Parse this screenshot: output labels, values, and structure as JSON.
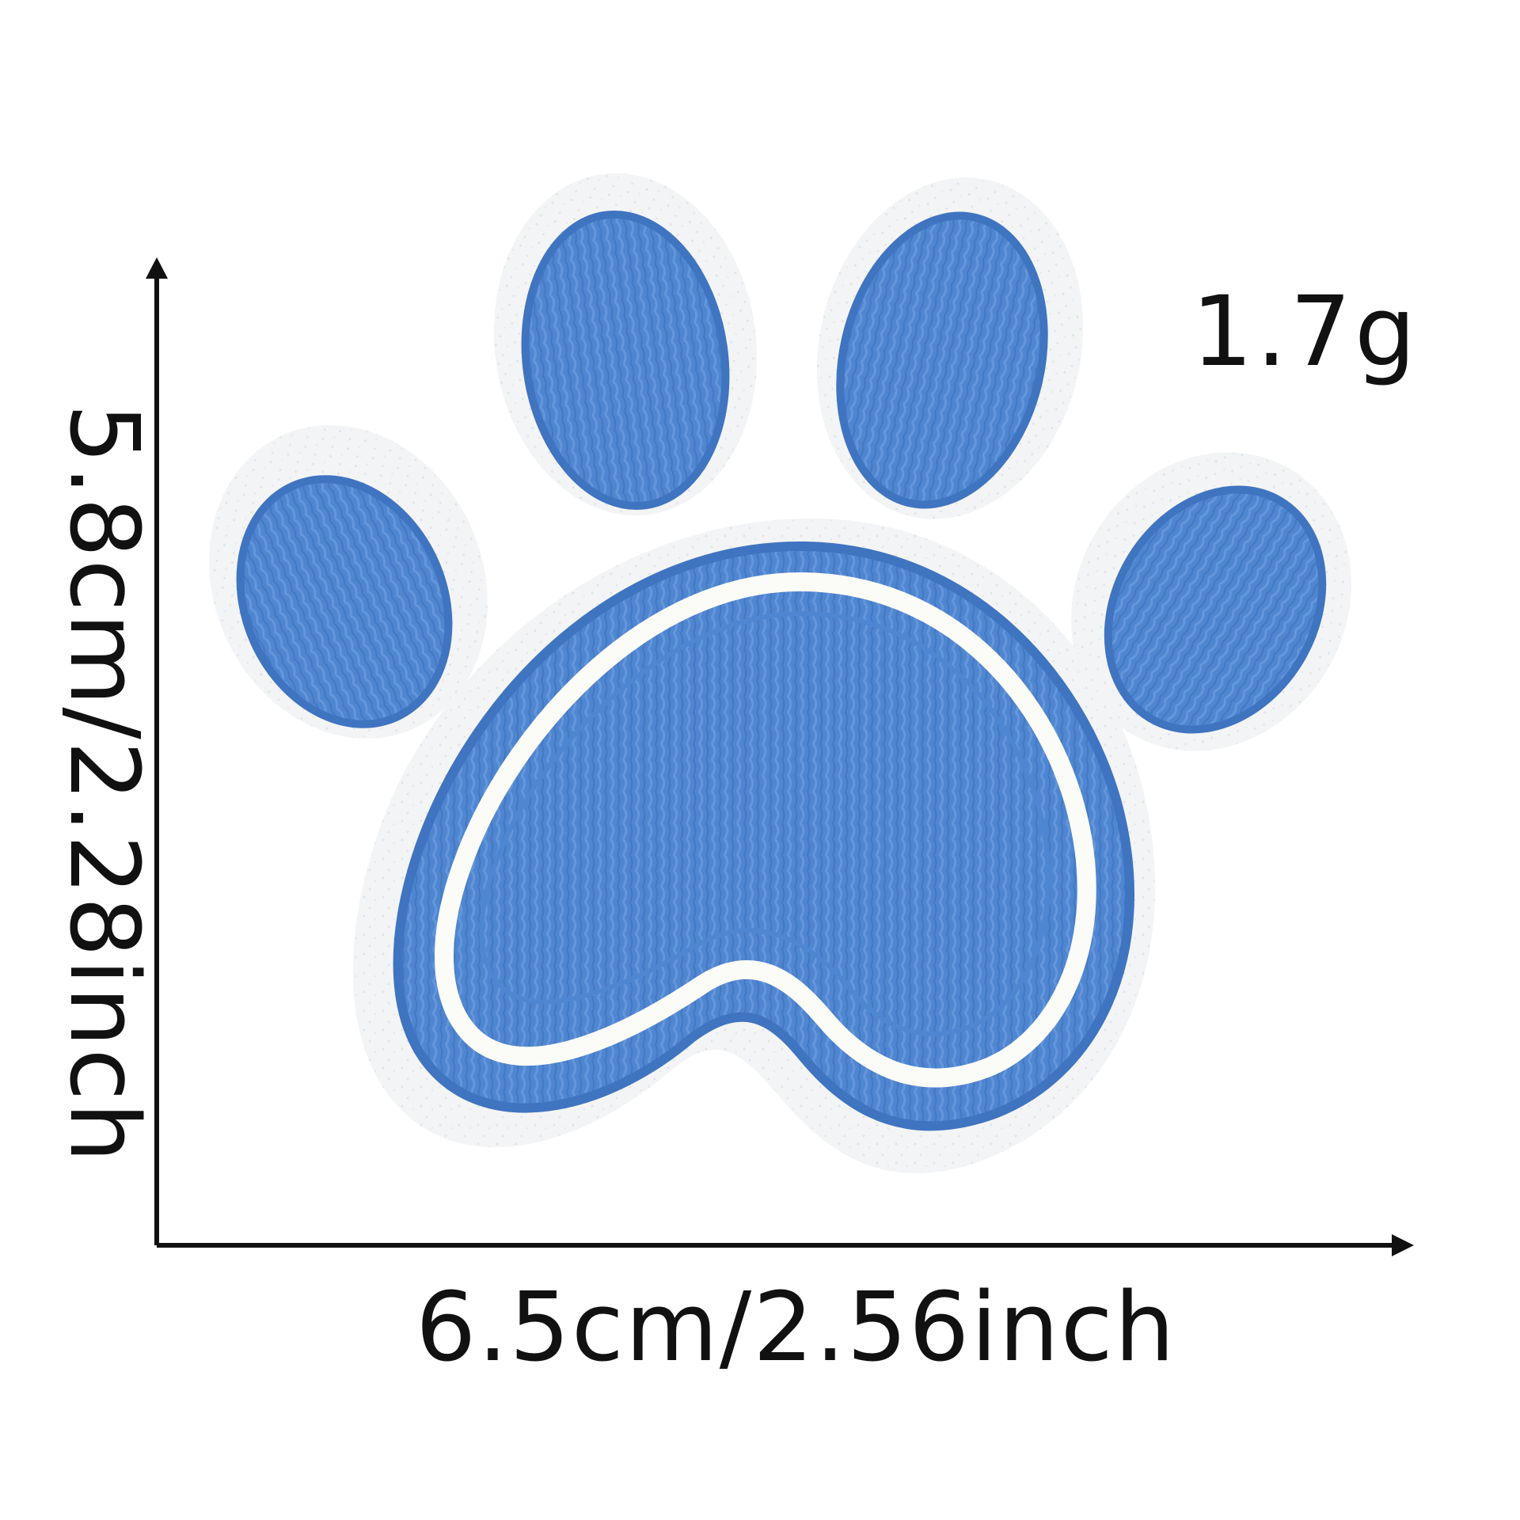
{
  "product": {
    "weight_label": "1.7g",
    "width_label": "6.5cm/2.56inch",
    "height_label": "5.8cm/2.28inch",
    "patch_color": "#4f86d1",
    "patch_dark_color": "#3f74c0",
    "felt_color": "#f2f3f4",
    "inner_outline_color": "#fbfbf8",
    "icon": "paw-print-patch"
  }
}
